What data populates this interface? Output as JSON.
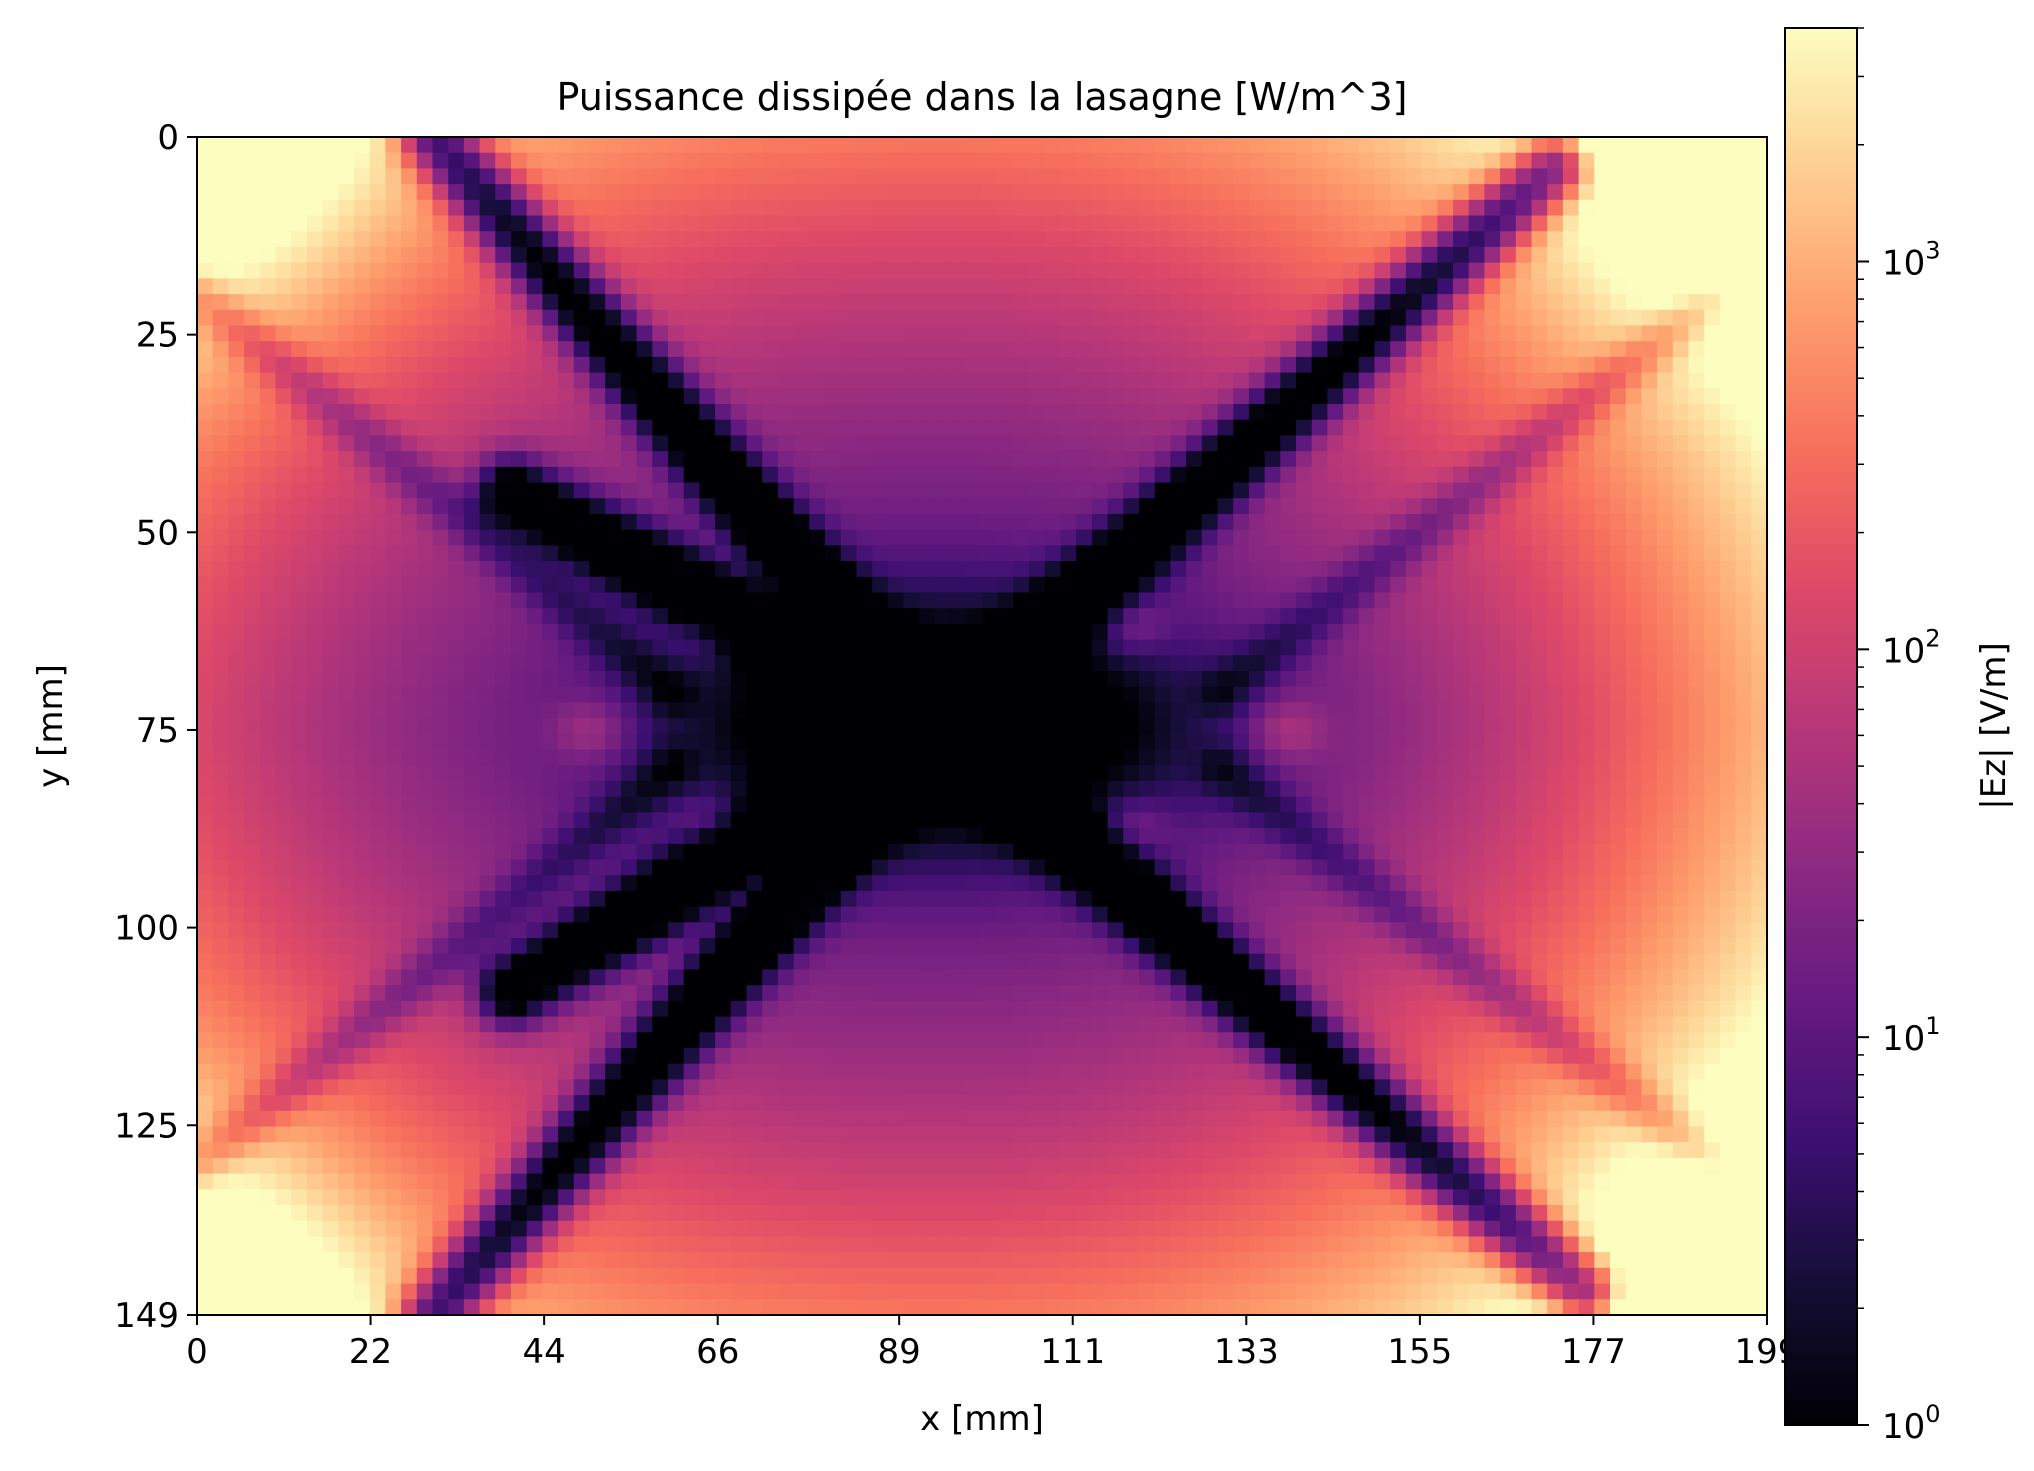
{
  "chart_data": {
    "type": "heatmap",
    "title": "Puissance dissipée dans la lasagne [W/m^3]",
    "xlabel": "x [mm]",
    "ylabel": "y [mm]",
    "x_ticks": [
      "0",
      "22",
      "44",
      "66",
      "89",
      "111",
      "133",
      "155",
      "177",
      "199"
    ],
    "x_tick_values": [
      0,
      22,
      44,
      66,
      89,
      111,
      133,
      155,
      177,
      199
    ],
    "y_ticks": [
      "0",
      "25",
      "50",
      "75",
      "100",
      "125",
      "149"
    ],
    "y_tick_values": [
      0,
      25,
      50,
      75,
      100,
      125,
      149
    ],
    "xlim": [
      0,
      199
    ],
    "ylim": [
      149,
      0
    ],
    "y_inverted": true,
    "grid": false,
    "colormap": "magma",
    "colorbar": {
      "label": "|Ez| [V/m]",
      "scale": "log",
      "range": [
        1,
        4000
      ],
      "ticks": [
        {
          "base": "10",
          "exp": "0",
          "value": 1
        },
        {
          "base": "10",
          "exp": "1",
          "value": 10
        },
        {
          "base": "10",
          "exp": "2",
          "value": 100
        },
        {
          "base": "10",
          "exp": "3",
          "value": 1000
        }
      ]
    },
    "field_summary": {
      "description_values": {
        "corner_max": 4000,
        "edge_mid_top_bottom": 600,
        "right_edge": 2000,
        "center_min": 1
      }
    }
  }
}
